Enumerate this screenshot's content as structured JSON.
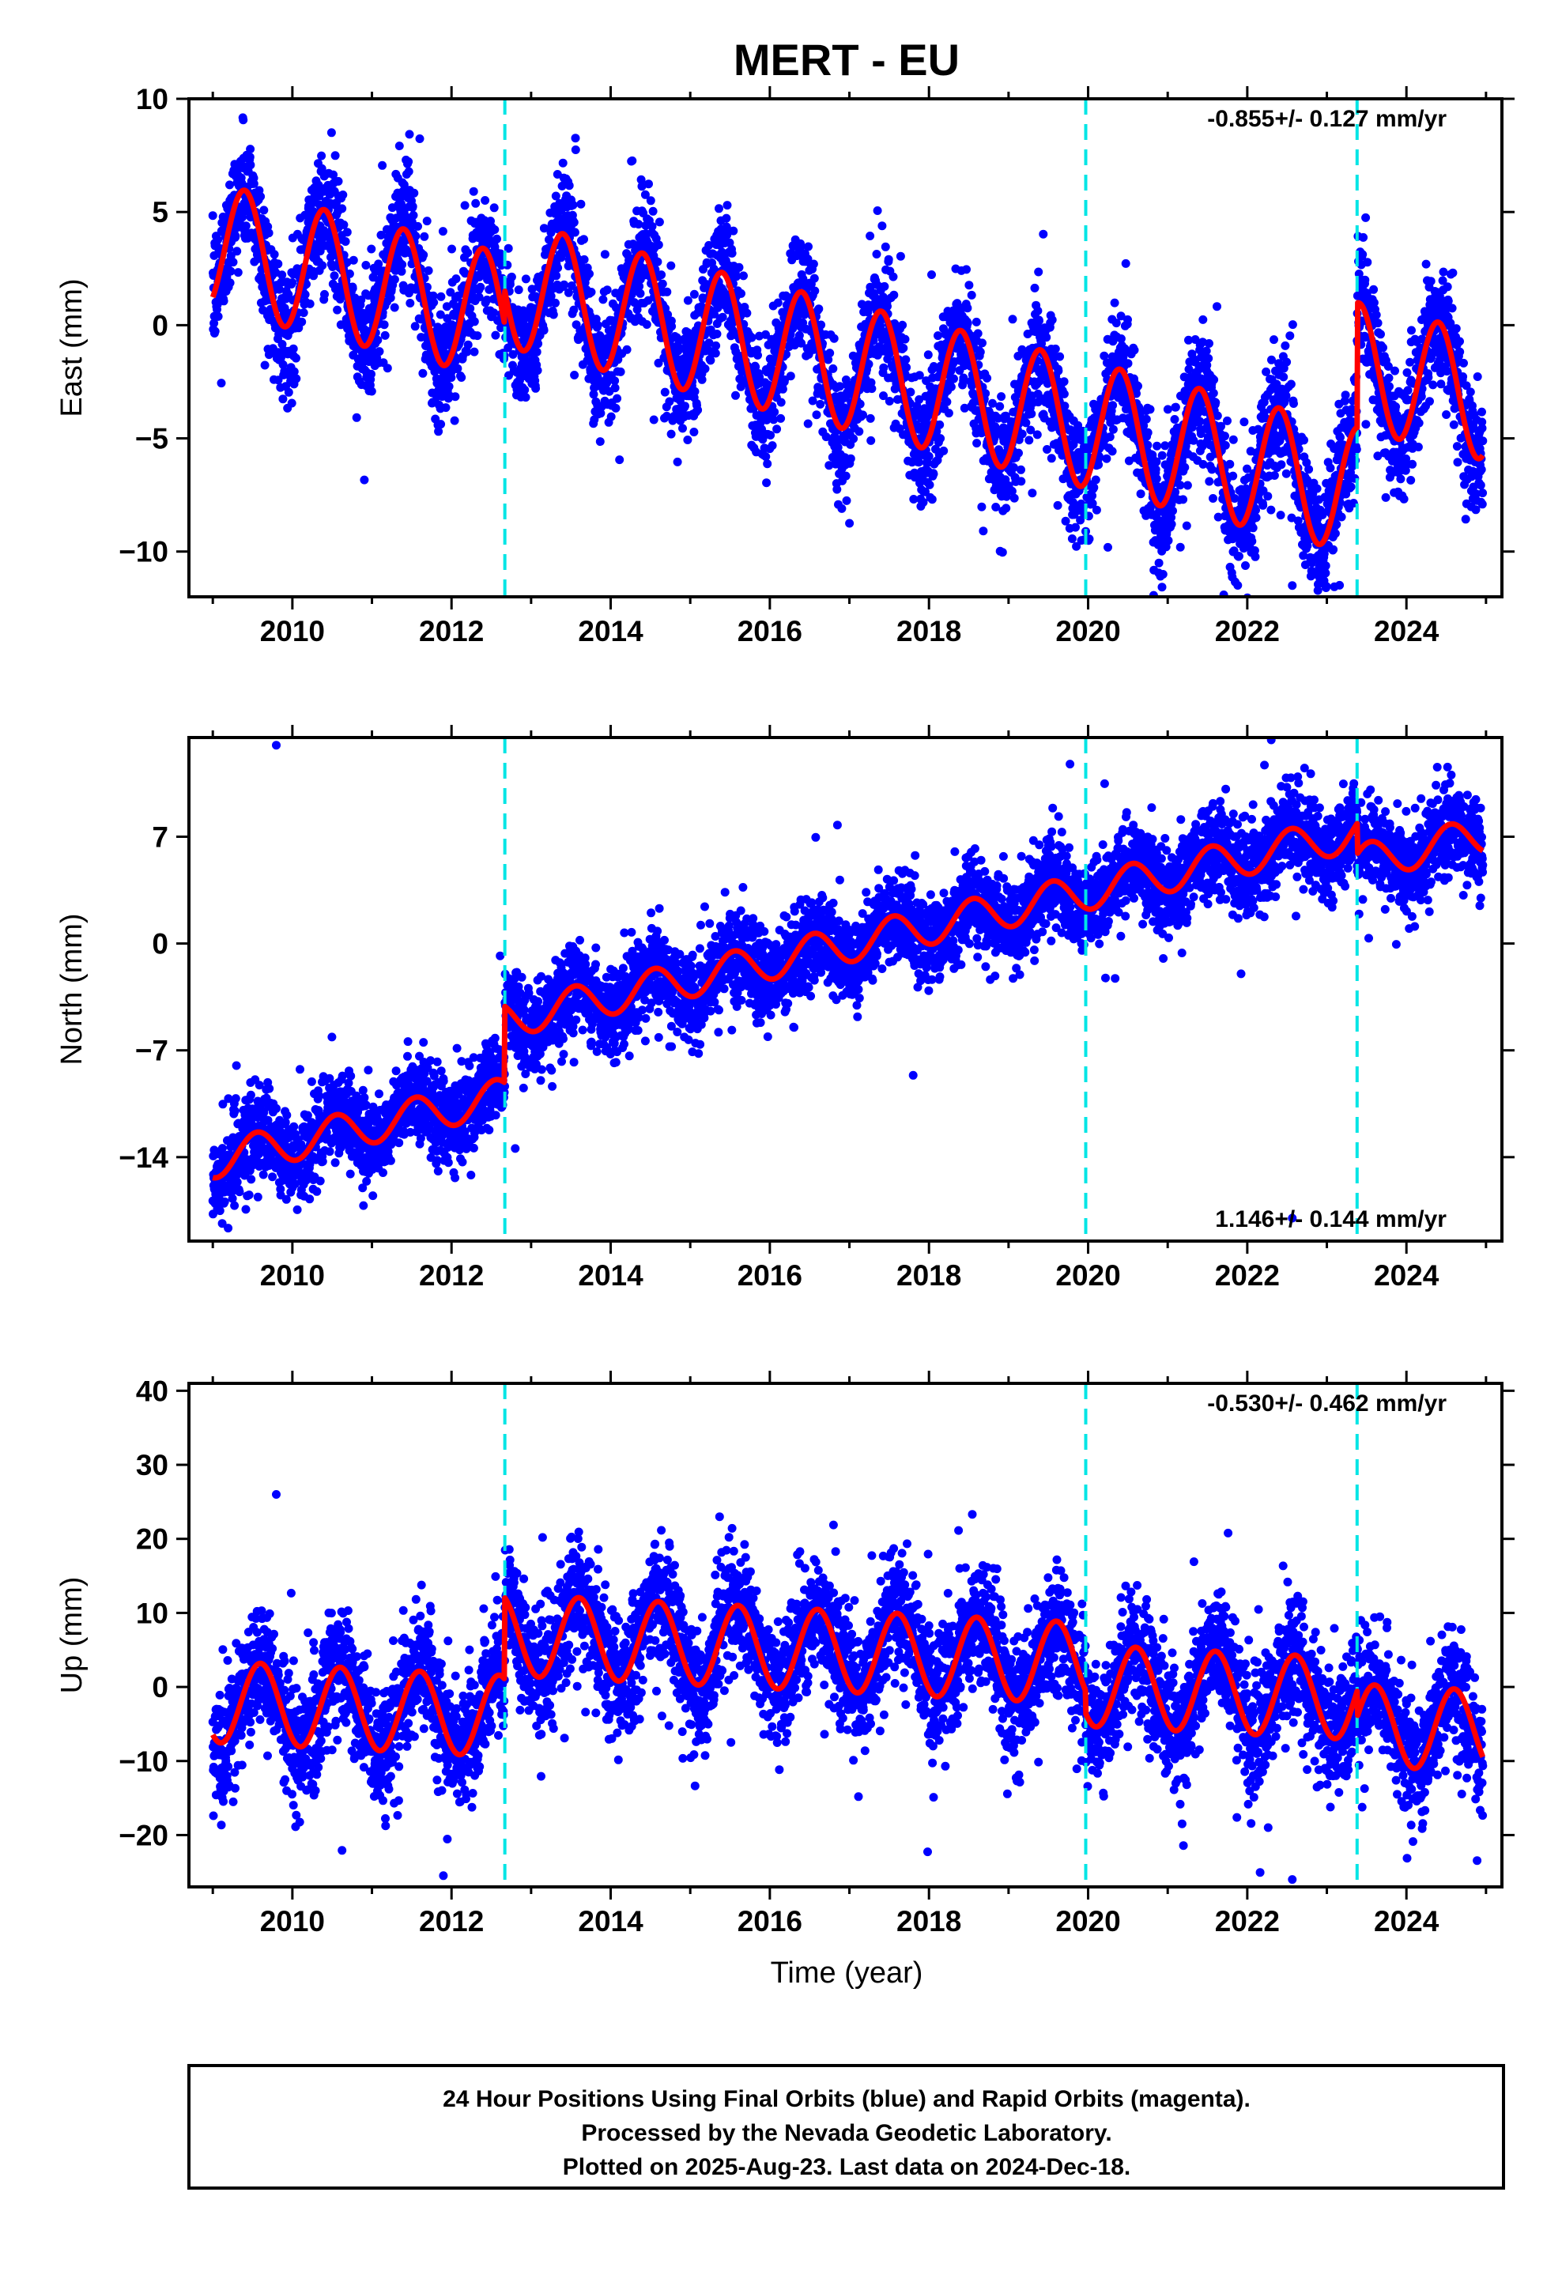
{
  "figure": {
    "title": "MERT - EU",
    "xlabel": "Time (year)",
    "footer": [
      "24 Hour Positions Using Final Orbits (blue) and Rapid Orbits (magenta).",
      "Processed by the Nevada Geodetic Laboratory.",
      "Plotted on 2025-Aug-23. Last data on 2024-Dec-18."
    ],
    "colors": {
      "data": "#0000ff",
      "model": "#ff0000",
      "event_line": "#00e5e5",
      "frame": "#000000"
    }
  },
  "chart_data": [
    {
      "type": "scatter",
      "component": "East",
      "ylabel": "East (mm)",
      "rate_label": "-0.855+/- 0.127 mm/yr",
      "rate_position": "top-right",
      "xlim": [
        2008.7,
        2025.2
      ],
      "ylim": [
        -12,
        10
      ],
      "xticks": [
        "2010",
        "2012",
        "2014",
        "2016",
        "2018",
        "2020",
        "2022",
        "2024"
      ],
      "yticks": [
        "10",
        "5",
        "0",
        "−5",
        "−10"
      ],
      "ytick_values": [
        10,
        5,
        0,
        -5,
        -10
      ],
      "event_lines": [
        2012.67,
        2019.97,
        2023.38
      ],
      "model": {
        "start_year": 2009.0,
        "end_year": 2024.96,
        "intercept_mm": 3.5,
        "rate_mm_per_yr": -0.855,
        "annual_amplitude_mm": 2.8,
        "annual_peak_year_fraction": 0.4,
        "offsets": [
          {
            "year": 2012.67,
            "step_mm": 1.5
          },
          {
            "year": 2023.38,
            "step_mm": 5.5
          }
        ]
      },
      "data_scatter_mm": 1.3,
      "data_sample_count": 5800,
      "y_extremes": [
        10.2,
        -11.5
      ]
    },
    {
      "type": "scatter",
      "component": "North",
      "ylabel": "North (mm)",
      "rate_label": "1.146+/- 0.144 mm/yr",
      "rate_position": "bottom-right",
      "xlim": [
        2008.7,
        2025.2
      ],
      "ylim": [
        -19.5,
        13.5
      ],
      "xticks": [
        "2010",
        "2012",
        "2014",
        "2016",
        "2018",
        "2020",
        "2022",
        "2024"
      ],
      "yticks": [
        "7",
        "0",
        "−7",
        "−14"
      ],
      "ytick_values": [
        7,
        0,
        -7,
        -14
      ],
      "event_lines": [
        2012.67,
        2019.97,
        2023.38
      ],
      "model": {
        "start_year": 2009.0,
        "end_year": 2024.96,
        "intercept_mm": -14.2,
        "rate_mm_per_yr": 1.146,
        "annual_amplitude_mm": 1.2,
        "annual_peak_year_fraction": 0.55,
        "offsets": [
          {
            "year": 2012.67,
            "step_mm": 5.0
          },
          {
            "year": 2023.38,
            "step_mm": -2.0
          }
        ]
      },
      "data_scatter_mm": 1.4,
      "data_sample_count": 5800,
      "y_extremes": [
        13.0,
        -18.0
      ]
    },
    {
      "type": "scatter",
      "component": "Up",
      "ylabel": "Up (mm)",
      "rate_label": "-0.530+/- 0.462 mm/yr",
      "rate_position": "top-right",
      "xlim": [
        2008.7,
        2025.2
      ],
      "ylim": [
        -27,
        41
      ],
      "xticks": [
        "2010",
        "2012",
        "2014",
        "2016",
        "2018",
        "2020",
        "2022",
        "2024"
      ],
      "yticks": [
        "40",
        "30",
        "20",
        "10",
        "0",
        "−10",
        "−20"
      ],
      "ytick_values": [
        40,
        30,
        20,
        10,
        0,
        -10,
        -20
      ],
      "event_lines": [
        2012.67,
        2019.97,
        2023.38
      ],
      "model": {
        "start_year": 2009.0,
        "end_year": 2024.96,
        "intercept_mm": -2.0,
        "rate_mm_per_yr": -0.53,
        "annual_amplitude_mm": 5.5,
        "annual_peak_year_fraction": 0.6,
        "offsets": [
          {
            "year": 2012.67,
            "step_mm": 11.0
          },
          {
            "year": 2019.97,
            "step_mm": -3.0
          },
          {
            "year": 2023.38,
            "step_mm": -3.5
          }
        ]
      },
      "data_scatter_mm": 4.0,
      "data_sample_count": 5800,
      "y_extremes": [
        26.0,
        -26.0
      ]
    }
  ]
}
